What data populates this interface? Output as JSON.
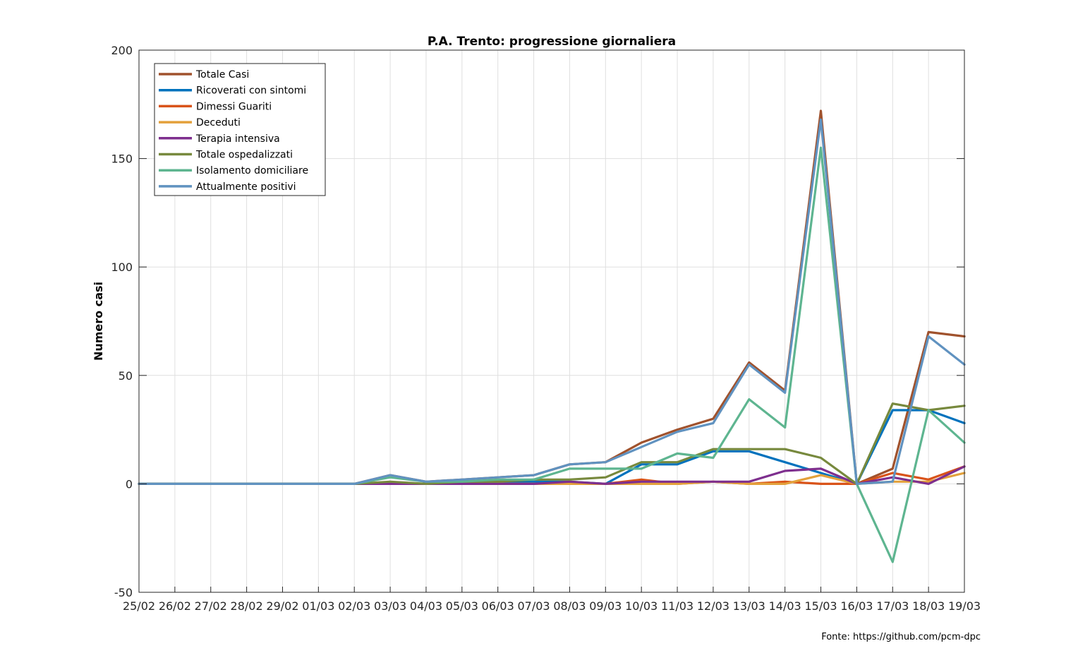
{
  "chart_data": {
    "type": "line",
    "title": "P.A. Trento: progressione giornaliera",
    "xlabel": "",
    "ylabel": "Numero casi",
    "ylim": [
      -50,
      200
    ],
    "yticks": [
      "-50",
      "0",
      "50",
      "100",
      "150",
      "200"
    ],
    "grid": true,
    "legend_position": "top-left",
    "source_note": "Fonte: https://github.com/pcm-dpc",
    "categories": [
      "25/02",
      "26/02",
      "27/02",
      "28/02",
      "29/02",
      "01/03",
      "02/03",
      "03/03",
      "04/03",
      "05/03",
      "06/03",
      "07/03",
      "08/03",
      "09/03",
      "10/03",
      "11/03",
      "12/03",
      "13/03",
      "14/03",
      "15/03",
      "16/03",
      "17/03",
      "18/03",
      "19/03"
    ],
    "series": [
      {
        "name": "Totale Casi",
        "color": "#a0522d",
        "values": [
          0,
          0,
          0,
          0,
          0,
          0,
          0,
          4,
          1,
          2,
          3,
          4,
          9,
          10,
          19,
          25,
          30,
          56,
          43,
          172,
          0,
          7,
          70,
          68
        ]
      },
      {
        "name": "Ricoverati con sintomi",
        "color": "#0072bd",
        "values": [
          0,
          0,
          0,
          0,
          0,
          0,
          0,
          0,
          0,
          1,
          1,
          1,
          1,
          0,
          9,
          9,
          15,
          15,
          10,
          5,
          0,
          34,
          34,
          28
        ]
      },
      {
        "name": "Dimessi Guariti",
        "color": "#d95319",
        "values": [
          0,
          0,
          0,
          0,
          0,
          0,
          0,
          0,
          0,
          0,
          0,
          0,
          0,
          0,
          2,
          0,
          1,
          0,
          1,
          0,
          0,
          5,
          2,
          8
        ]
      },
      {
        "name": "Deceduti",
        "color": "#e3a13b",
        "values": [
          0,
          0,
          0,
          0,
          0,
          0,
          0,
          0,
          0,
          0,
          0,
          0,
          0,
          0,
          0,
          0,
          1,
          0,
          0,
          4,
          0,
          1,
          1,
          5
        ]
      },
      {
        "name": "Terapia intensiva",
        "color": "#7e2f8e",
        "values": [
          0,
          0,
          0,
          0,
          0,
          0,
          0,
          0,
          0,
          0,
          0,
          0,
          1,
          0,
          1,
          1,
          1,
          1,
          6,
          7,
          0,
          3,
          0,
          8
        ]
      },
      {
        "name": "Totale ospedalizzati",
        "color": "#77893d",
        "values": [
          0,
          0,
          0,
          0,
          0,
          0,
          0,
          1,
          0,
          1,
          1,
          2,
          2,
          3,
          10,
          10,
          16,
          16,
          16,
          12,
          0,
          37,
          34,
          36
        ]
      },
      {
        "name": "Isolamento domiciliare",
        "color": "#5eb590",
        "values": [
          0,
          0,
          0,
          0,
          0,
          0,
          0,
          3,
          1,
          1,
          2,
          2,
          7,
          7,
          7,
          14,
          12,
          39,
          26,
          155,
          0,
          -36,
          34,
          19
        ]
      },
      {
        "name": "Attualmente positivi",
        "color": "#6092c0",
        "values": [
          0,
          0,
          0,
          0,
          0,
          0,
          0,
          4,
          1,
          2,
          3,
          4,
          9,
          10,
          17,
          24,
          28,
          55,
          42,
          168,
          0,
          1,
          68,
          55
        ]
      }
    ]
  }
}
